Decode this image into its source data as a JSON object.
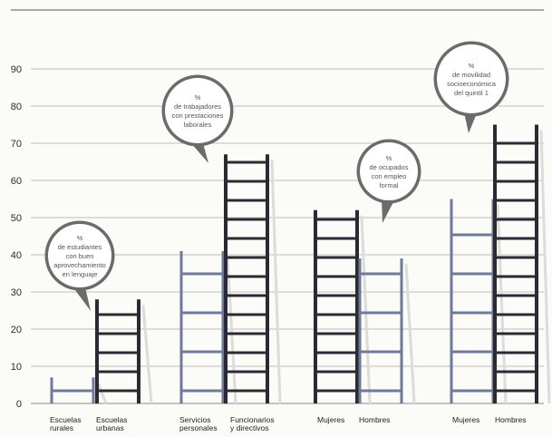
{
  "chart_data": {
    "type": "bar",
    "style": "ladder",
    "title": "",
    "xlabel": "",
    "ylabel": "",
    "ylim": [
      0,
      90
    ],
    "yticks": [
      0,
      10,
      20,
      30,
      40,
      50,
      60,
      70,
      80,
      90
    ],
    "grid": true,
    "colors": {
      "light": "#6f7a9a",
      "dark": "#2a2a33",
      "grid": "#bdbdbd",
      "bubble": "#6b6b6b"
    },
    "groups": [
      {
        "bubble": [
          "%",
          "de estudiantes",
          "con buen",
          "aprovechamiento",
          "en lenguaje"
        ],
        "bars": [
          {
            "label": [
              "Escuelas",
              "rurales"
            ],
            "value": 7,
            "tone": "light"
          },
          {
            "label": [
              "Escuelas",
              "urbanas"
            ],
            "value": 28,
            "tone": "dark"
          }
        ]
      },
      {
        "bubble": [
          "%",
          "de trabajadores",
          "con prestaciones",
          "laborales"
        ],
        "bars": [
          {
            "label": [
              "Servicios",
              "personales"
            ],
            "value": 41,
            "tone": "light"
          },
          {
            "label": [
              "Funcionarios",
              "y directivos"
            ],
            "value": 67,
            "tone": "dark"
          }
        ]
      },
      {
        "bubble": [
          "%",
          "de ocupados",
          "con empleo",
          "formal"
        ],
        "bars": [
          {
            "label": [
              "Mujeres"
            ],
            "value": 52,
            "tone": "dark"
          },
          {
            "label": [
              "Hombres"
            ],
            "value": 39,
            "tone": "light"
          }
        ]
      },
      {
        "bubble": [
          "%",
          "de movilidad",
          "socioeconómica",
          "del quintil 1"
        ],
        "bars": [
          {
            "label": [
              "Mujeres"
            ],
            "value": 55,
            "tone": "light"
          },
          {
            "label": [
              "Hombres"
            ],
            "value": 75,
            "tone": "dark"
          }
        ]
      }
    ]
  }
}
